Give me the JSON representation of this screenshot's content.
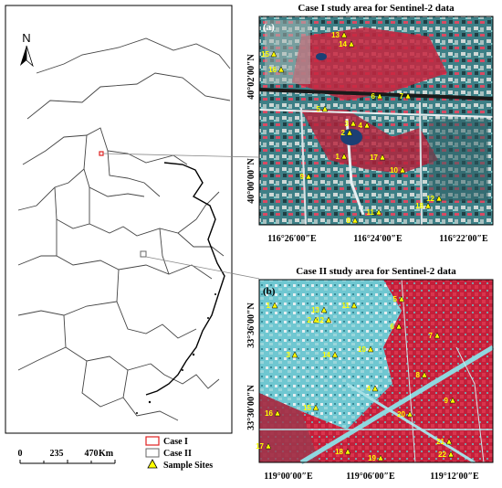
{
  "main_map": {
    "north_label": "N",
    "scale_labels": [
      "0",
      "235",
      "470",
      "Km"
    ]
  },
  "legend": {
    "case1": "Case I",
    "case2": "Case II",
    "sites": "Sample Sites",
    "case1_color": "#e02020",
    "case2_color": "#666666",
    "site_color": "#ffff00"
  },
  "panel_a": {
    "title": "Case I study area for Sentinel-2 data",
    "letter": "(a)",
    "x_ticks": [
      "116°26′00″E",
      "116°24′00″E",
      "116°22′00″E"
    ],
    "y_ticks": [
      "40°02′00″N",
      "40°00′00″N"
    ],
    "sites": [
      "1",
      "2",
      "3",
      "4",
      "5",
      "6",
      "7",
      "8",
      "9",
      "10",
      "11",
      "12",
      "13",
      "14",
      "15",
      "16",
      "17",
      "18"
    ]
  },
  "panel_b": {
    "title": "Case II study area for Sentinel-2 data",
    "letter": "(b)",
    "x_ticks": [
      "119°00′00″E",
      "119°06′00″E",
      "119°12′00″E"
    ],
    "y_ticks": [
      "33°36′00″N",
      "33°30′00″N"
    ],
    "sites": [
      "1",
      "2",
      "3",
      "4",
      "5",
      "6",
      "7",
      "8",
      "9",
      "10",
      "11",
      "12",
      "13",
      "14",
      "15",
      "16",
      "17",
      "18",
      "19",
      "20",
      "21",
      "22"
    ]
  }
}
